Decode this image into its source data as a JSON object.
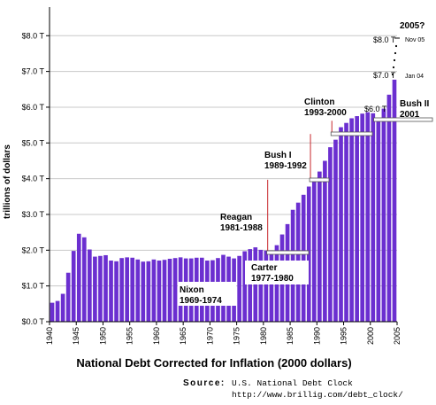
{
  "chart_data": {
    "type": "bar",
    "title": "",
    "xlabel": "National Debt Corrected for Inflation (2000 dollars)",
    "ylabel": "trillions of dollars",
    "ylim": [
      0,
      8.8
    ],
    "grid": true,
    "color": "#6b2fd0",
    "y_ticks": [
      "$0.0 T",
      "$1.0 T",
      "$2.0 T",
      "$3.0 T",
      "$4.0 T",
      "$5.0 T",
      "$6.0 T",
      "$7.0 T",
      "$8.0 T"
    ],
    "x_ticks": [
      "1940",
      "1945",
      "1950",
      "1955",
      "1960",
      "1965",
      "1970",
      "1975",
      "1980",
      "1985",
      "1990",
      "1995",
      "2000",
      "2005"
    ],
    "categories": [
      "1940",
      "1941",
      "1942",
      "1943",
      "1944",
      "1945",
      "1946",
      "1947",
      "1948",
      "1949",
      "1950",
      "1951",
      "1952",
      "1953",
      "1954",
      "1955",
      "1956",
      "1957",
      "1958",
      "1959",
      "1960",
      "1961",
      "1962",
      "1963",
      "1964",
      "1965",
      "1966",
      "1967",
      "1968",
      "1969",
      "1970",
      "1971",
      "1972",
      "1973",
      "1974",
      "1975",
      "1976",
      "1977",
      "1978",
      "1979",
      "1980",
      "1981",
      "1982",
      "1983",
      "1984",
      "1985",
      "1986",
      "1987",
      "1988",
      "1989",
      "1990",
      "1991",
      "1992",
      "1993",
      "1994",
      "1995",
      "1996",
      "1997",
      "1998",
      "1999",
      "2000",
      "2001",
      "2002",
      "2003",
      "2004"
    ],
    "values": [
      0.53,
      0.58,
      0.78,
      1.37,
      1.98,
      2.46,
      2.36,
      2.02,
      1.82,
      1.84,
      1.86,
      1.71,
      1.69,
      1.78,
      1.8,
      1.79,
      1.74,
      1.68,
      1.69,
      1.74,
      1.71,
      1.73,
      1.76,
      1.78,
      1.8,
      1.77,
      1.77,
      1.79,
      1.79,
      1.71,
      1.72,
      1.78,
      1.87,
      1.82,
      1.77,
      1.84,
      1.97,
      2.03,
      2.08,
      2.01,
      1.99,
      1.99,
      2.14,
      2.44,
      2.73,
      3.13,
      3.33,
      3.55,
      3.78,
      3.97,
      4.2,
      4.5,
      4.88,
      5.09,
      5.44,
      5.56,
      5.69,
      5.75,
      5.82,
      5.86,
      5.83,
      5.66,
      5.96,
      6.35,
      6.77
    ],
    "eras": [
      {
        "name": "Nixon",
        "years": "1969-1974",
        "line_x": 1969.2,
        "line_top": 0
      },
      {
        "name": "Carter",
        "years": "1977-1980",
        "line_x": 1976.8,
        "line_top": 0
      },
      {
        "name": "Reagan",
        "years": "1981-1988",
        "line_x": 1980.8,
        "line_top": 3.97
      },
      {
        "name": "Bush I",
        "years": "1989-1992",
        "line_x": 1988.8,
        "line_top": 5.25
      },
      {
        "name": "Clinton",
        "years": "1993-2000",
        "line_x": 1992.8,
        "line_top": 5.62
      },
      {
        "name": "Bush II",
        "years": "2001",
        "line_x": 2000.8,
        "line_top": 5.66
      }
    ],
    "annotations": {
      "projection_year": "2005?",
      "label_8t": "$8.0 T",
      "label_7t": "$7.0 T",
      "label_6t": "$6.0 T",
      "nov05": "Nov 05",
      "jan04": "Jan 04"
    },
    "source_label": "Source:",
    "source_name": "U.S. National Debt Clock",
    "source_url": "http://www.brillig.com/debt_clock/"
  }
}
